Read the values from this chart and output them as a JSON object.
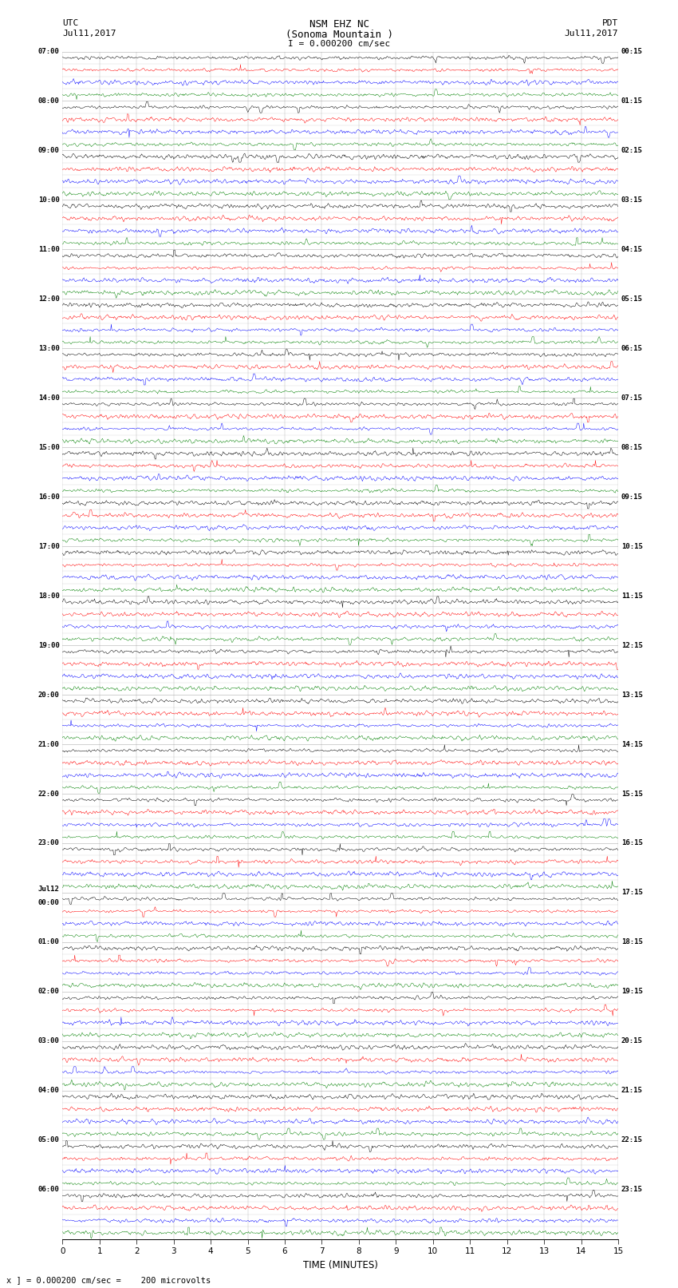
{
  "title_line1": "NSM EHZ NC",
  "title_line2": "(Sonoma Mountain )",
  "title_scale": "I = 0.000200 cm/sec",
  "left_header": "UTC",
  "left_date": "Jul11,2017",
  "right_header": "PDT",
  "right_date": "Jul11,2017",
  "xlabel": "TIME (MINUTES)",
  "footer": "x ] = 0.000200 cm/sec =    200 microvolts",
  "trace_colors": [
    "black",
    "red",
    "blue",
    "green"
  ],
  "background_color": "white",
  "num_hour_blocks": 24,
  "minutes_per_row": 15,
  "fig_width": 8.5,
  "fig_height": 16.13,
  "left_hour_labels": [
    "07:00",
    "08:00",
    "09:00",
    "10:00",
    "11:00",
    "12:00",
    "13:00",
    "14:00",
    "15:00",
    "16:00",
    "17:00",
    "18:00",
    "19:00",
    "20:00",
    "21:00",
    "22:00",
    "23:00",
    "Jul12\n00:00",
    "01:00",
    "02:00",
    "03:00",
    "04:00",
    "05:00",
    "06:00"
  ],
  "right_hour_labels": [
    "00:15",
    "01:15",
    "02:15",
    "03:15",
    "04:15",
    "05:15",
    "06:15",
    "07:15",
    "08:15",
    "09:15",
    "10:15",
    "11:15",
    "12:15",
    "13:15",
    "14:15",
    "15:15",
    "16:15",
    "17:15",
    "18:15",
    "19:15",
    "20:15",
    "21:15",
    "22:15",
    "23:15"
  ]
}
